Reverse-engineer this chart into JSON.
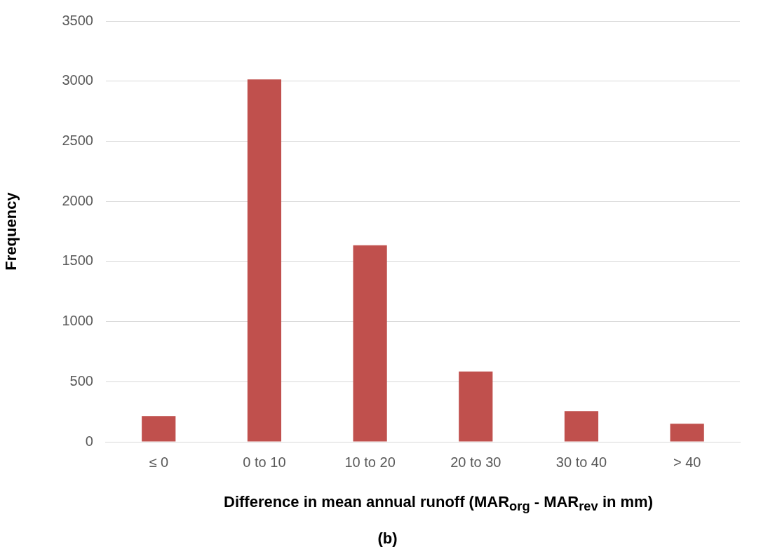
{
  "chart_data": {
    "type": "bar",
    "categories": [
      "≤ 0",
      "0 to 10",
      "10 to 20",
      "20 to 30",
      "30 to 40",
      "> 40"
    ],
    "values": [
      215,
      3015,
      1635,
      585,
      255,
      150
    ],
    "color": "#c0504d",
    "ylabel": "Frequency",
    "xlabel": "Difference in mean annual runoff (MAR$_{org}$ - MAR$_{rev}$ in mm)",
    "ylim": [
      0,
      3500
    ],
    "yticks": [
      0,
      500,
      1000,
      1500,
      2000,
      2500,
      3000,
      3500
    ],
    "grid": "y",
    "legend": false,
    "annotations": [
      "(b)"
    ]
  }
}
